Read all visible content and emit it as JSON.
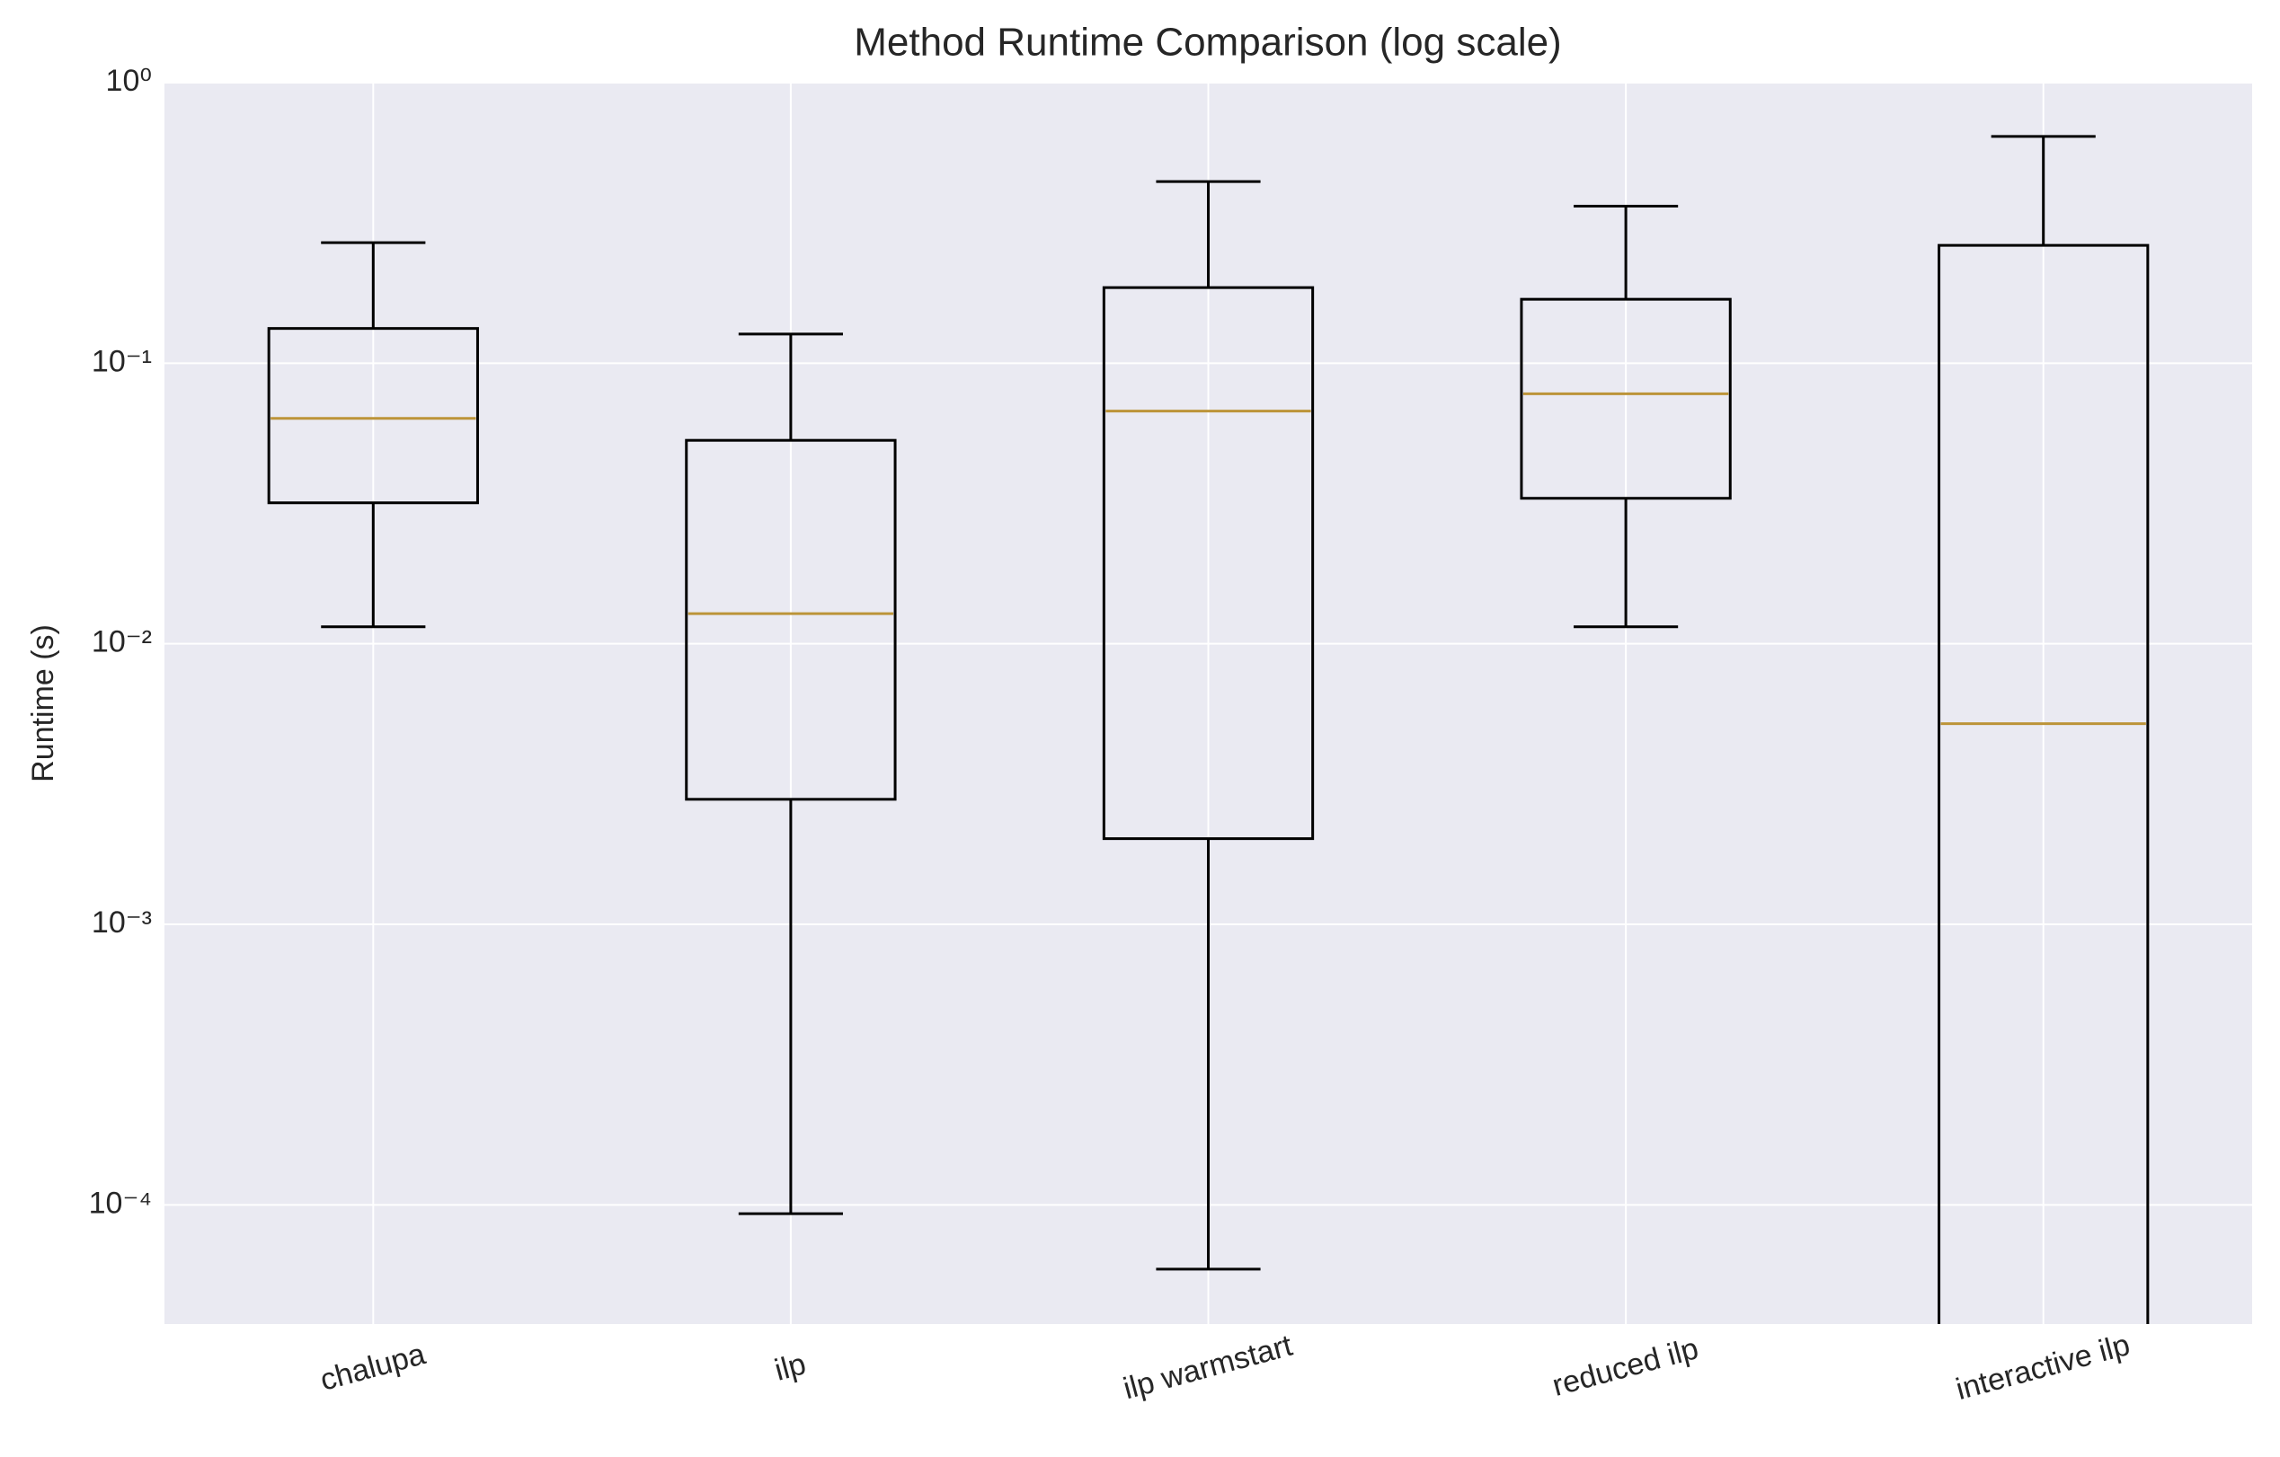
{
  "chart_data": {
    "type": "box",
    "title": "Method Runtime Comparison (log scale)",
    "y_label": "Runtime (s)",
    "categories": [
      "chalupa",
      "ilp",
      "ilp warmstart",
      "reduced ilp",
      "interactive ilp"
    ],
    "boxes": [
      {
        "whislo": 0.0115,
        "q1": 0.0318,
        "med": 0.0636,
        "q3": 0.133,
        "whishi": 0.269
      },
      {
        "whislo": 9.3e-05,
        "q1": 0.00279,
        "med": 0.0128,
        "q3": 0.0531,
        "whishi": 0.127
      },
      {
        "whislo": 5.9e-05,
        "q1": 0.00202,
        "med": 0.0675,
        "q3": 0.186,
        "whishi": 0.444
      },
      {
        "whislo": 0.0115,
        "q1": 0.033,
        "med": 0.0778,
        "q3": 0.169,
        "whishi": 0.363
      },
      {
        "whislo": null,
        "q1": null,
        "med": 0.00519,
        "q3": 0.263,
        "whishi": 0.643
      }
    ],
    "box_color": "#000000",
    "median_color": "#bc9439",
    "y_log": true,
    "ylim": [
      3.76e-05,
      1
    ],
    "yticks": [
      {
        "value": 1,
        "label": "10⁰"
      },
      {
        "value": 0.1,
        "label": "10⁻¹"
      },
      {
        "value": 0.01,
        "label": "10⁻²"
      },
      {
        "value": 0.001,
        "label": "10⁻³"
      },
      {
        "value": 0.0001,
        "label": "10⁻⁴"
      }
    ],
    "grid": true
  }
}
